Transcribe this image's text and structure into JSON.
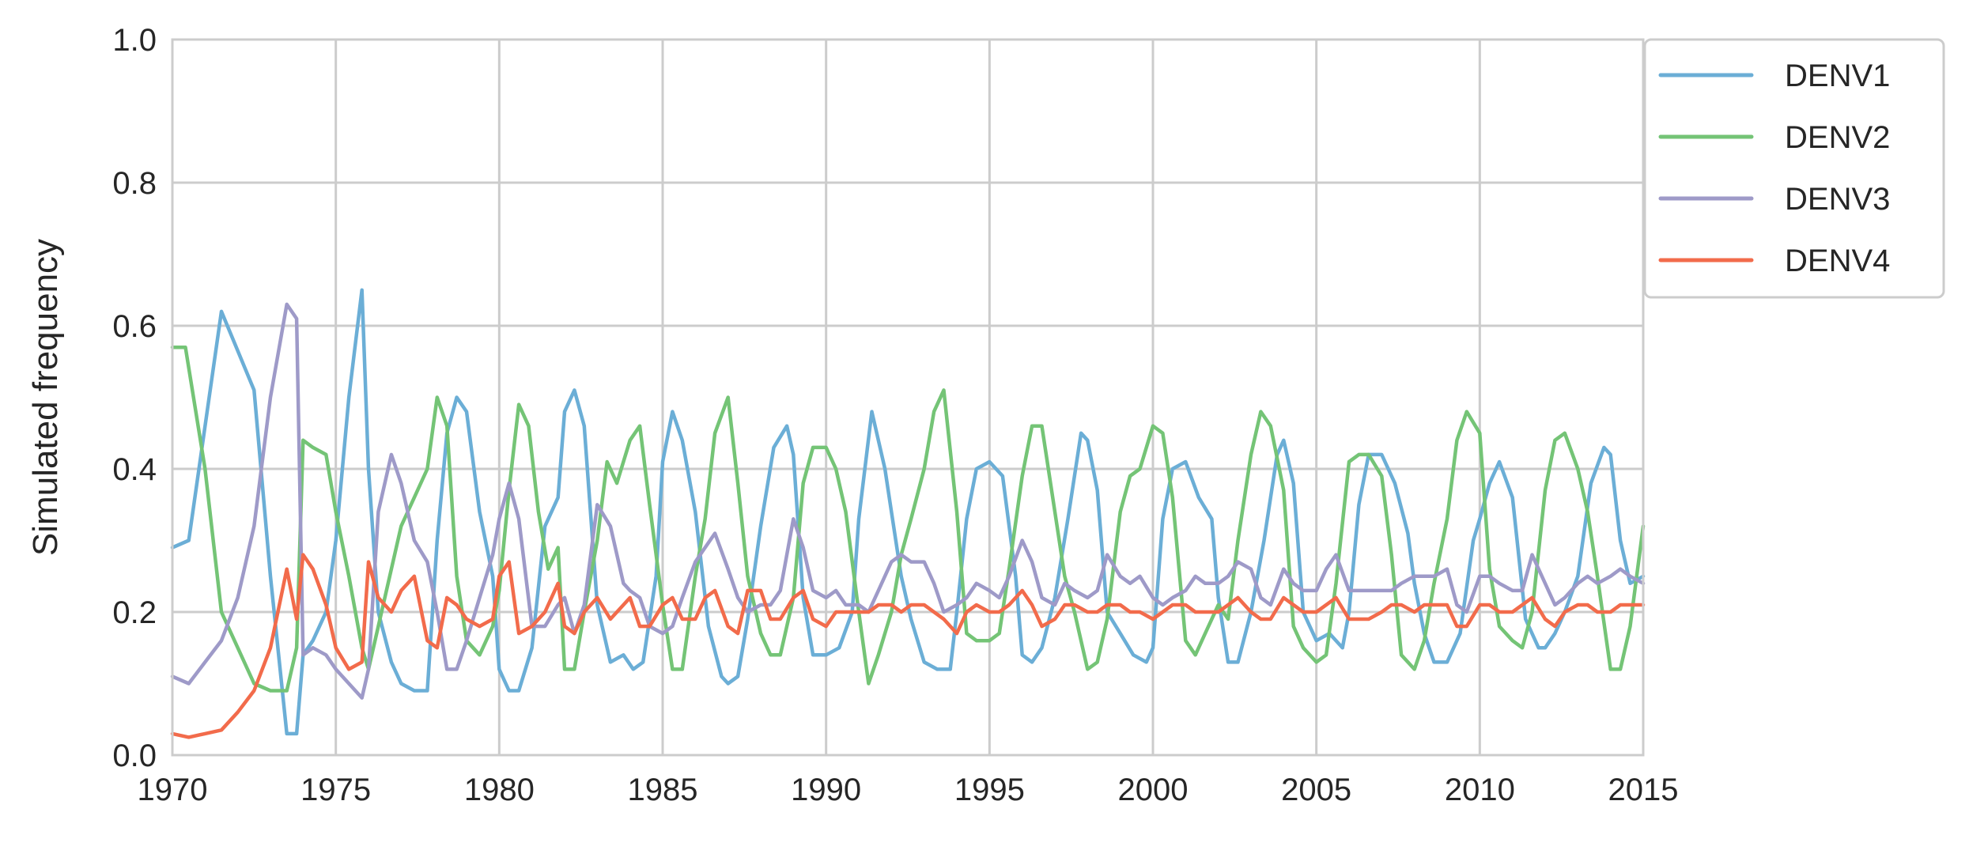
{
  "chart_data": {
    "type": "line",
    "title": "",
    "xlabel": "",
    "ylabel": "Simulated frequency",
    "xlim": [
      1970,
      2015
    ],
    "ylim": [
      0,
      1.0
    ],
    "xticks": [
      1970,
      1975,
      1980,
      1985,
      1990,
      1995,
      2000,
      2005,
      2010,
      2015
    ],
    "xtick_labels": [
      "1970",
      "1975",
      "1980",
      "1985",
      "1990",
      "1995",
      "2000",
      "2005",
      "2010",
      "2015"
    ],
    "yticks": [
      0,
      0.2,
      0.4,
      0.6,
      0.8,
      1.0
    ],
    "ytick_labels": [
      "0.0",
      "0.2",
      "0.4",
      "0.6",
      "0.8",
      "1.0"
    ],
    "grid": true,
    "legend_position": "outside-top-right",
    "series": [
      {
        "name": "DENV1",
        "color": "#6baed6",
        "x": [
          1970.0,
          1970.5,
          1971.5,
          1972.5,
          1973.0,
          1973.5,
          1973.8,
          1974.0,
          1974.3,
          1974.7,
          1975.0,
          1975.4,
          1975.8,
          1976.0,
          1976.3,
          1976.7,
          1977.0,
          1977.4,
          1977.8,
          1978.1,
          1978.4,
          1978.7,
          1979.0,
          1979.4,
          1979.8,
          1980.0,
          1980.3,
          1980.6,
          1981.0,
          1981.4,
          1981.8,
          1982.0,
          1982.3,
          1982.6,
          1983.0,
          1983.4,
          1983.8,
          1984.1,
          1984.4,
          1984.8,
          1985.0,
          1985.3,
          1985.6,
          1986.0,
          1986.4,
          1986.8,
          1987.0,
          1987.3,
          1987.6,
          1988.0,
          1988.4,
          1988.8,
          1989.0,
          1989.3,
          1989.6,
          1990.0,
          1990.4,
          1990.8,
          1991.0,
          1991.4,
          1991.8,
          1992.0,
          1992.3,
          1992.6,
          1993.0,
          1993.4,
          1993.8,
          1994.0,
          1994.3,
          1994.6,
          1995.0,
          1995.4,
          1995.8,
          1996.0,
          1996.3,
          1996.6,
          1997.0,
          1997.4,
          1997.8,
          1998.0,
          1998.3,
          1998.6,
          1999.0,
          1999.4,
          1999.8,
          2000.0,
          2000.3,
          2000.6,
          2001.0,
          2001.4,
          2001.8,
          2002.0,
          2002.3,
          2002.6,
          2003.0,
          2003.4,
          2003.8,
          2004.0,
          2004.3,
          2004.6,
          2005.0,
          2005.4,
          2005.8,
          2006.0,
          2006.3,
          2006.6,
          2007.0,
          2007.4,
          2007.8,
          2008.0,
          2008.3,
          2008.6,
          2009.0,
          2009.4,
          2009.8,
          2010.0,
          2010.3,
          2010.6,
          2011.0,
          2011.4,
          2011.8,
          2012.0,
          2012.3,
          2012.6,
          2013.0,
          2013.4,
          2013.8,
          2014.0,
          2014.3,
          2014.6,
          2015.0
        ],
        "y": [
          0.29,
          0.3,
          0.62,
          0.51,
          0.25,
          0.03,
          0.03,
          0.14,
          0.16,
          0.2,
          0.3,
          0.5,
          0.65,
          0.4,
          0.2,
          0.13,
          0.1,
          0.09,
          0.09,
          0.3,
          0.45,
          0.5,
          0.48,
          0.34,
          0.25,
          0.12,
          0.09,
          0.09,
          0.15,
          0.32,
          0.36,
          0.48,
          0.51,
          0.46,
          0.21,
          0.13,
          0.14,
          0.12,
          0.13,
          0.25,
          0.41,
          0.48,
          0.44,
          0.34,
          0.18,
          0.11,
          0.1,
          0.11,
          0.19,
          0.32,
          0.43,
          0.46,
          0.42,
          0.22,
          0.14,
          0.14,
          0.15,
          0.2,
          0.33,
          0.48,
          0.4,
          0.34,
          0.25,
          0.19,
          0.13,
          0.12,
          0.12,
          0.2,
          0.33,
          0.4,
          0.41,
          0.39,
          0.25,
          0.14,
          0.13,
          0.15,
          0.22,
          0.33,
          0.45,
          0.44,
          0.37,
          0.2,
          0.17,
          0.14,
          0.13,
          0.15,
          0.33,
          0.4,
          0.41,
          0.36,
          0.33,
          0.22,
          0.13,
          0.13,
          0.2,
          0.3,
          0.42,
          0.44,
          0.38,
          0.2,
          0.16,
          0.17,
          0.15,
          0.2,
          0.35,
          0.42,
          0.42,
          0.38,
          0.31,
          0.24,
          0.17,
          0.13,
          0.13,
          0.17,
          0.3,
          0.33,
          0.38,
          0.41,
          0.36,
          0.19,
          0.15,
          0.15,
          0.17,
          0.2,
          0.25,
          0.38,
          0.43,
          0.42,
          0.3,
          0.24,
          0.25
        ]
      },
      {
        "name": "DENV2",
        "color": "#74c476",
        "x": [
          1970.0,
          1970.4,
          1971.0,
          1971.5,
          1972.0,
          1972.5,
          1973.0,
          1973.5,
          1973.8,
          1974.0,
          1974.3,
          1974.7,
          1975.0,
          1975.4,
          1975.8,
          1976.0,
          1976.3,
          1976.7,
          1977.0,
          1977.4,
          1977.8,
          1978.1,
          1978.4,
          1978.7,
          1979.0,
          1979.4,
          1979.8,
          1980.0,
          1980.3,
          1980.6,
          1980.9,
          1981.2,
          1981.5,
          1981.8,
          1982.0,
          1982.3,
          1982.6,
          1983.0,
          1983.3,
          1983.6,
          1984.0,
          1984.3,
          1984.6,
          1985.0,
          1985.3,
          1985.6,
          1986.0,
          1986.3,
          1986.6,
          1987.0,
          1987.3,
          1987.6,
          1988.0,
          1988.3,
          1988.6,
          1989.0,
          1989.3,
          1989.6,
          1990.0,
          1990.3,
          1990.6,
          1991.0,
          1991.3,
          1991.6,
          1992.0,
          1992.3,
          1992.6,
          1993.0,
          1993.3,
          1993.6,
          1994.0,
          1994.3,
          1994.6,
          1995.0,
          1995.3,
          1995.6,
          1996.0,
          1996.3,
          1996.6,
          1997.0,
          1997.3,
          1997.6,
          1998.0,
          1998.3,
          1998.6,
          1999.0,
          1999.3,
          1999.6,
          2000.0,
          2000.3,
          2000.6,
          2001.0,
          2001.3,
          2001.6,
          2002.0,
          2002.3,
          2002.6,
          2003.0,
          2003.3,
          2003.6,
          2004.0,
          2004.3,
          2004.6,
          2005.0,
          2005.3,
          2005.6,
          2006.0,
          2006.3,
          2006.6,
          2007.0,
          2007.3,
          2007.6,
          2008.0,
          2008.3,
          2008.6,
          2009.0,
          2009.3,
          2009.6,
          2010.0,
          2010.3,
          2010.6,
          2011.0,
          2011.3,
          2011.6,
          2012.0,
          2012.3,
          2012.6,
          2013.0,
          2013.3,
          2013.6,
          2014.0,
          2014.3,
          2014.6,
          2015.0
        ],
        "y": [
          0.57,
          0.57,
          0.4,
          0.2,
          0.15,
          0.1,
          0.09,
          0.09,
          0.15,
          0.44,
          0.43,
          0.42,
          0.34,
          0.25,
          0.15,
          0.12,
          0.18,
          0.26,
          0.32,
          0.36,
          0.4,
          0.5,
          0.46,
          0.25,
          0.16,
          0.14,
          0.18,
          0.23,
          0.37,
          0.49,
          0.46,
          0.34,
          0.26,
          0.29,
          0.12,
          0.12,
          0.2,
          0.3,
          0.41,
          0.38,
          0.44,
          0.46,
          0.35,
          0.21,
          0.12,
          0.12,
          0.25,
          0.33,
          0.45,
          0.5,
          0.38,
          0.25,
          0.17,
          0.14,
          0.14,
          0.22,
          0.38,
          0.43,
          0.43,
          0.4,
          0.34,
          0.2,
          0.1,
          0.14,
          0.2,
          0.28,
          0.33,
          0.4,
          0.48,
          0.51,
          0.34,
          0.17,
          0.16,
          0.16,
          0.17,
          0.26,
          0.39,
          0.46,
          0.46,
          0.34,
          0.25,
          0.2,
          0.12,
          0.13,
          0.19,
          0.34,
          0.39,
          0.4,
          0.46,
          0.45,
          0.36,
          0.16,
          0.14,
          0.17,
          0.21,
          0.19,
          0.3,
          0.42,
          0.48,
          0.46,
          0.37,
          0.18,
          0.15,
          0.13,
          0.14,
          0.24,
          0.41,
          0.42,
          0.42,
          0.39,
          0.28,
          0.14,
          0.12,
          0.16,
          0.24,
          0.33,
          0.44,
          0.48,
          0.45,
          0.26,
          0.18,
          0.16,
          0.15,
          0.2,
          0.37,
          0.44,
          0.45,
          0.4,
          0.34,
          0.25,
          0.12,
          0.12,
          0.18,
          0.32
        ]
      },
      {
        "name": "DENV3",
        "color": "#9e9ac8",
        "x": [
          1970.0,
          1970.5,
          1971.0,
          1971.5,
          1972.0,
          1972.5,
          1973.0,
          1973.5,
          1973.8,
          1974.0,
          1974.3,
          1974.7,
          1975.0,
          1975.4,
          1975.8,
          1976.0,
          1976.3,
          1976.7,
          1977.0,
          1977.4,
          1977.8,
          1978.1,
          1978.4,
          1978.7,
          1979.0,
          1979.4,
          1979.8,
          1980.0,
          1980.3,
          1980.6,
          1981.0,
          1981.4,
          1981.8,
          1982.0,
          1982.3,
          1982.6,
          1983.0,
          1983.4,
          1983.8,
          1984.0,
          1984.3,
          1984.6,
          1985.0,
          1985.3,
          1985.6,
          1986.0,
          1986.3,
          1986.6,
          1987.0,
          1987.3,
          1987.6,
          1988.0,
          1988.3,
          1988.6,
          1989.0,
          1989.3,
          1989.6,
          1990.0,
          1990.3,
          1990.6,
          1991.0,
          1991.3,
          1991.6,
          1992.0,
          1992.3,
          1992.6,
          1993.0,
          1993.3,
          1993.6,
          1994.0,
          1994.3,
          1994.6,
          1995.0,
          1995.3,
          1995.6,
          1996.0,
          1996.3,
          1996.6,
          1997.0,
          1997.3,
          1997.6,
          1998.0,
          1998.3,
          1998.6,
          1999.0,
          1999.3,
          1999.6,
          2000.0,
          2000.3,
          2000.6,
          2001.0,
          2001.3,
          2001.6,
          2002.0,
          2002.3,
          2002.6,
          2003.0,
          2003.3,
          2003.6,
          2004.0,
          2004.3,
          2004.6,
          2005.0,
          2005.3,
          2005.6,
          2006.0,
          2006.3,
          2006.6,
          2007.0,
          2007.3,
          2007.6,
          2008.0,
          2008.3,
          2008.6,
          2009.0,
          2009.3,
          2009.6,
          2010.0,
          2010.3,
          2010.6,
          2011.0,
          2011.3,
          2011.6,
          2012.0,
          2012.3,
          2012.6,
          2013.0,
          2013.3,
          2013.6,
          2014.0,
          2014.3,
          2014.6,
          2015.0
        ],
        "y": [
          0.11,
          0.1,
          0.13,
          0.16,
          0.22,
          0.32,
          0.5,
          0.63,
          0.61,
          0.14,
          0.15,
          0.14,
          0.12,
          0.1,
          0.08,
          0.12,
          0.34,
          0.42,
          0.38,
          0.3,
          0.27,
          0.2,
          0.12,
          0.12,
          0.16,
          0.22,
          0.28,
          0.33,
          0.38,
          0.33,
          0.18,
          0.18,
          0.21,
          0.22,
          0.17,
          0.21,
          0.35,
          0.32,
          0.24,
          0.23,
          0.22,
          0.18,
          0.17,
          0.18,
          0.22,
          0.27,
          0.29,
          0.31,
          0.26,
          0.22,
          0.2,
          0.21,
          0.21,
          0.23,
          0.33,
          0.29,
          0.23,
          0.22,
          0.23,
          0.21,
          0.21,
          0.2,
          0.23,
          0.27,
          0.28,
          0.27,
          0.27,
          0.24,
          0.2,
          0.21,
          0.22,
          0.24,
          0.23,
          0.22,
          0.25,
          0.3,
          0.27,
          0.22,
          0.21,
          0.24,
          0.23,
          0.22,
          0.23,
          0.28,
          0.25,
          0.24,
          0.25,
          0.22,
          0.21,
          0.22,
          0.23,
          0.25,
          0.24,
          0.24,
          0.25,
          0.27,
          0.26,
          0.22,
          0.21,
          0.26,
          0.24,
          0.23,
          0.23,
          0.26,
          0.28,
          0.23,
          0.23,
          0.23,
          0.23,
          0.23,
          0.24,
          0.25,
          0.25,
          0.25,
          0.26,
          0.21,
          0.2,
          0.25,
          0.25,
          0.24,
          0.23,
          0.23,
          0.28,
          0.24,
          0.21,
          0.22,
          0.24,
          0.25,
          0.24,
          0.25,
          0.26,
          0.25,
          0.24
        ]
      },
      {
        "name": "DENV4",
        "color": "#f26b4b",
        "x": [
          1970.0,
          1970.5,
          1971.0,
          1971.5,
          1972.0,
          1972.5,
          1973.0,
          1973.5,
          1973.8,
          1974.0,
          1974.3,
          1974.7,
          1975.0,
          1975.4,
          1975.8,
          1976.0,
          1976.3,
          1976.7,
          1977.0,
          1977.4,
          1977.8,
          1978.1,
          1978.4,
          1978.7,
          1979.0,
          1979.4,
          1979.8,
          1980.0,
          1980.3,
          1980.6,
          1981.0,
          1981.4,
          1981.8,
          1982.0,
          1982.3,
          1982.6,
          1983.0,
          1983.4,
          1983.8,
          1984.0,
          1984.3,
          1984.6,
          1985.0,
          1985.3,
          1985.6,
          1986.0,
          1986.3,
          1986.6,
          1987.0,
          1987.3,
          1987.6,
          1988.0,
          1988.3,
          1988.6,
          1989.0,
          1989.3,
          1989.6,
          1990.0,
          1990.3,
          1990.6,
          1991.0,
          1991.3,
          1991.6,
          1992.0,
          1992.3,
          1992.6,
          1993.0,
          1993.3,
          1993.6,
          1994.0,
          1994.3,
          1994.6,
          1995.0,
          1995.3,
          1995.6,
          1996.0,
          1996.3,
          1996.6,
          1997.0,
          1997.3,
          1997.6,
          1998.0,
          1998.3,
          1998.6,
          1999.0,
          1999.3,
          1999.6,
          2000.0,
          2000.3,
          2000.6,
          2001.0,
          2001.3,
          2001.6,
          2002.0,
          2002.3,
          2002.6,
          2003.0,
          2003.3,
          2003.6,
          2004.0,
          2004.3,
          2004.6,
          2005.0,
          2005.3,
          2005.6,
          2006.0,
          2006.3,
          2006.6,
          2007.0,
          2007.3,
          2007.6,
          2008.0,
          2008.3,
          2008.6,
          2009.0,
          2009.3,
          2009.6,
          2010.0,
          2010.3,
          2010.6,
          2011.0,
          2011.3,
          2011.6,
          2012.0,
          2012.3,
          2012.6,
          2013.0,
          2013.3,
          2013.6,
          2014.0,
          2014.3,
          2014.6,
          2015.0
        ],
        "y": [
          0.03,
          0.025,
          0.03,
          0.035,
          0.06,
          0.09,
          0.15,
          0.26,
          0.19,
          0.28,
          0.26,
          0.21,
          0.15,
          0.12,
          0.13,
          0.27,
          0.22,
          0.2,
          0.23,
          0.25,
          0.16,
          0.15,
          0.22,
          0.21,
          0.19,
          0.18,
          0.19,
          0.25,
          0.27,
          0.17,
          0.18,
          0.2,
          0.24,
          0.18,
          0.17,
          0.2,
          0.22,
          0.19,
          0.21,
          0.22,
          0.18,
          0.18,
          0.21,
          0.22,
          0.19,
          0.19,
          0.22,
          0.23,
          0.18,
          0.17,
          0.23,
          0.23,
          0.19,
          0.19,
          0.22,
          0.23,
          0.19,
          0.18,
          0.2,
          0.2,
          0.2,
          0.2,
          0.21,
          0.21,
          0.2,
          0.21,
          0.21,
          0.2,
          0.19,
          0.17,
          0.2,
          0.21,
          0.2,
          0.2,
          0.21,
          0.23,
          0.21,
          0.18,
          0.19,
          0.21,
          0.21,
          0.2,
          0.2,
          0.21,
          0.21,
          0.2,
          0.2,
          0.19,
          0.2,
          0.21,
          0.21,
          0.2,
          0.2,
          0.2,
          0.21,
          0.22,
          0.2,
          0.19,
          0.19,
          0.22,
          0.21,
          0.2,
          0.2,
          0.21,
          0.22,
          0.19,
          0.19,
          0.19,
          0.2,
          0.21,
          0.21,
          0.2,
          0.21,
          0.21,
          0.21,
          0.18,
          0.18,
          0.21,
          0.21,
          0.2,
          0.2,
          0.21,
          0.22,
          0.19,
          0.18,
          0.2,
          0.21,
          0.21,
          0.2,
          0.2,
          0.21,
          0.21,
          0.21
        ]
      }
    ]
  }
}
